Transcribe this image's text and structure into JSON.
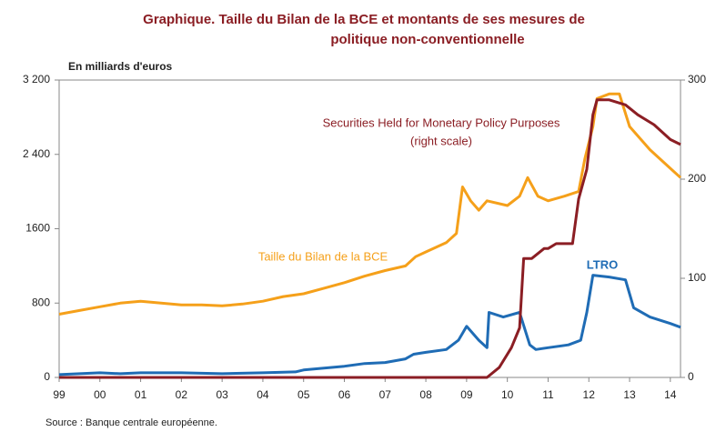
{
  "chart_data": {
    "type": "line",
    "title_line1": "Graphique. Taille du Bilan de la BCE et montants de ses mesures de",
    "title_line2": "politique non-conventionnelle",
    "y_label": "En milliards d'euros",
    "source": "Source : Banque centrale européenne.",
    "annotation_securities": "Securities Held for Monetary Policy Purposes",
    "annotation_securities_scale": "(right scale)",
    "annotation_balance": "Taille du Bilan de la BCE",
    "annotation_ltro": "LTRO",
    "xlim": [
      1999,
      2014.25
    ],
    "xticks": [
      {
        "value": 1999,
        "label": "99"
      },
      {
        "value": 2000,
        "label": "00"
      },
      {
        "value": 2001,
        "label": "01"
      },
      {
        "value": 2002,
        "label": "02"
      },
      {
        "value": 2003,
        "label": "03"
      },
      {
        "value": 2004,
        "label": "04"
      },
      {
        "value": 2005,
        "label": "05"
      },
      {
        "value": 2006,
        "label": "06"
      },
      {
        "value": 2007,
        "label": "07"
      },
      {
        "value": 2008,
        "label": "08"
      },
      {
        "value": 2009,
        "label": "09"
      },
      {
        "value": 2010,
        "label": "10"
      },
      {
        "value": 2011,
        "label": "11"
      },
      {
        "value": 2012,
        "label": "12"
      },
      {
        "value": 2013,
        "label": "13"
      },
      {
        "value": 2014,
        "label": "14"
      }
    ],
    "ylim": [
      0,
      3200
    ],
    "yticks": [
      0,
      800,
      1600,
      {
        "value": 2400,
        "label": "2 400"
      },
      {
        "value": 3200,
        "label": "3 200"
      }
    ],
    "y2lim": [
      0,
      300
    ],
    "y2ticks": [
      0,
      100,
      200,
      300
    ],
    "series": [
      {
        "color": "#f5a01a",
        "x": [
          1999,
          1999.5,
          2000,
          2000.5,
          2001,
          2001.5,
          2002,
          2002.5,
          2003,
          2003.5,
          2004,
          2004.5,
          2005,
          2005.5,
          2006,
          2006.5,
          2007,
          2007.5,
          2007.75,
          2008,
          2008.5,
          2008.75,
          2008.9,
          2009.1,
          2009.3,
          2009.5,
          2010,
          2010.3,
          2010.5,
          2010.75,
          2011,
          2011.4,
          2011.75,
          2011.9,
          2012.1,
          2012.2,
          2012.5,
          2012.75,
          2013,
          2013.5,
          2014,
          2014.25
        ],
        "values": [
          680,
          720,
          760,
          800,
          820,
          800,
          780,
          780,
          770,
          790,
          820,
          870,
          900,
          960,
          1020,
          1090,
          1150,
          1200,
          1300,
          1350,
          1450,
          1550,
          2050,
          1900,
          1800,
          1900,
          1850,
          1950,
          2150,
          1950,
          1900,
          1950,
          2000,
          2350,
          2700,
          3000,
          3050,
          3050,
          2700,
          2450,
          2250,
          2150
        ]
      },
      {
        "color": "#1f6cb5",
        "x": [
          1999,
          2000,
          2000.5,
          2001,
          2002,
          2003,
          2004,
          2004.8,
          2005,
          2006,
          2006.5,
          2007,
          2007.5,
          2007.7,
          2008,
          2008.5,
          2008.8,
          2009,
          2009.3,
          2009.5,
          2009.55,
          2009.9,
          2010.3,
          2010.55,
          2010.7,
          2011,
          2011.5,
          2011.8,
          2011.95,
          2012.1,
          2012.5,
          2012.9,
          2013.1,
          2013.5,
          2014,
          2014.25
        ],
        "values": [
          30,
          50,
          40,
          50,
          50,
          40,
          50,
          60,
          80,
          120,
          150,
          160,
          200,
          250,
          270,
          300,
          400,
          550,
          400,
          320,
          700,
          650,
          700,
          350,
          300,
          320,
          350,
          400,
          700,
          1100,
          1080,
          1050,
          750,
          650,
          580,
          540
        ]
      },
      {
        "color": "#8b1e24",
        "axis": "y2",
        "x": [
          1999,
          2009.5,
          2009.8,
          2010.1,
          2010.3,
          2010.4,
          2010.6,
          2010.9,
          2011,
          2011.2,
          2011.6,
          2011.75,
          2011.95,
          2012.1,
          2012.2,
          2012.5,
          2012.9,
          2013.2,
          2013.6,
          2014,
          2014.25
        ],
        "values": [
          0,
          0,
          10,
          30,
          50,
          120,
          120,
          130,
          130,
          135,
          135,
          180,
          210,
          265,
          280,
          280,
          275,
          265,
          255,
          240,
          235
        ]
      }
    ]
  }
}
